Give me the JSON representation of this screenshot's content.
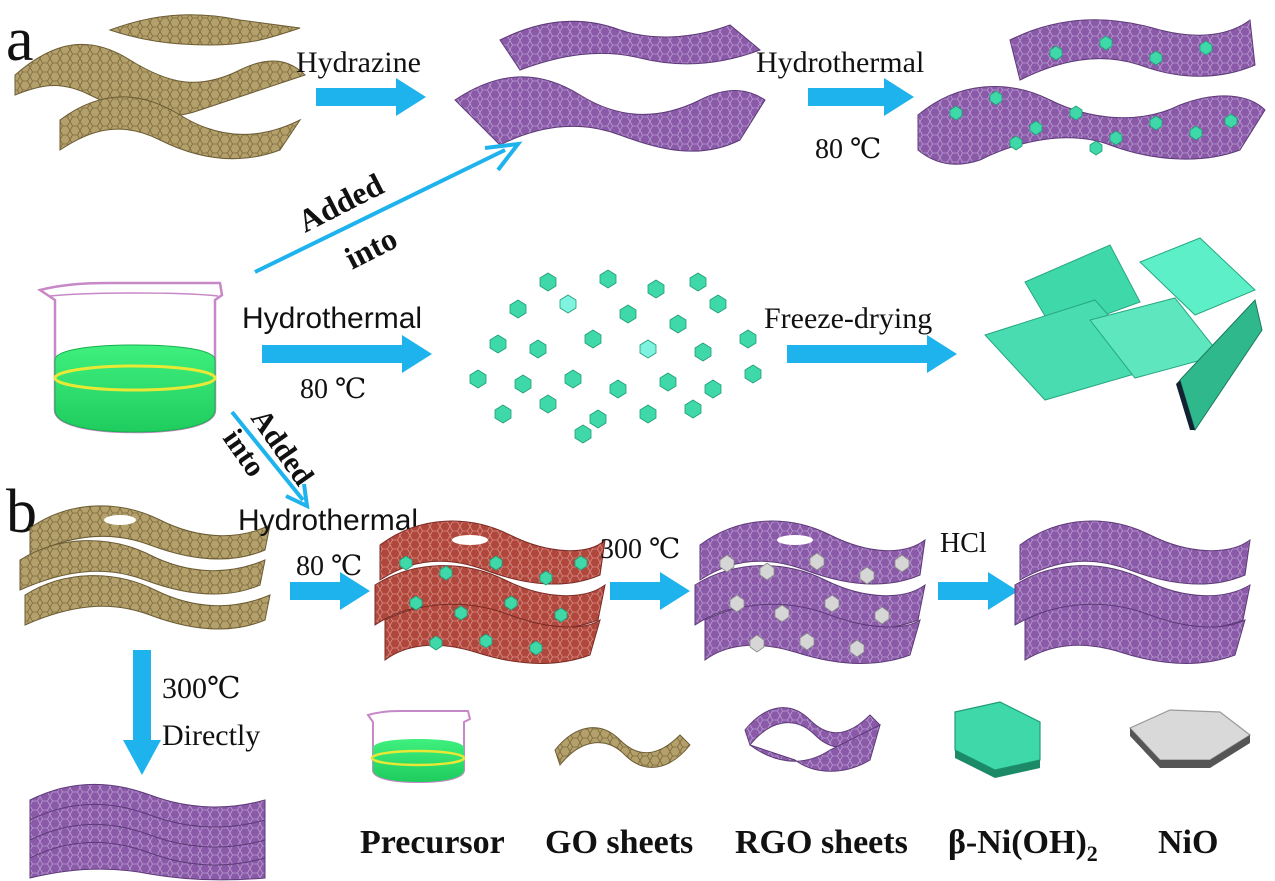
{
  "panels": {
    "a": "a",
    "b": "b"
  },
  "steps": {
    "hydrazine": "Hydrazine",
    "hydrothermal_top": "Hydrothermal",
    "temp_top": "80 ℃",
    "added_into_top_1": "Added",
    "added_into_top_2": "into",
    "hydrothermal_mid": "Hydrothermal",
    "temp_mid": "80 ℃",
    "freeze_drying": "Freeze-drying",
    "added_into_low_1": "Added",
    "added_into_low_2": "into",
    "hydrothermal_b": "Hydrothermal",
    "temp_b": "80 ℃",
    "calcine": "300 ℃",
    "acid": "HCl",
    "direct_temp": "300℃",
    "direct_label": "Directly"
  },
  "legend": {
    "precursor": "Precursor",
    "go": "GO sheets",
    "rgo": "RGO sheets",
    "nioh_main": "β-Ni(OH)",
    "nioh_sub": "2",
    "nio": "NiO"
  },
  "colors": {
    "arrow": "#1fb3ee",
    "go_sheet": "#b4a06b",
    "rgo_sheet": "#8a5aa8",
    "red_sheet": "#b0473d",
    "hexagon": "#3fd8a8",
    "nio": "#cfcfcf",
    "liquid": "#22dd6a"
  }
}
